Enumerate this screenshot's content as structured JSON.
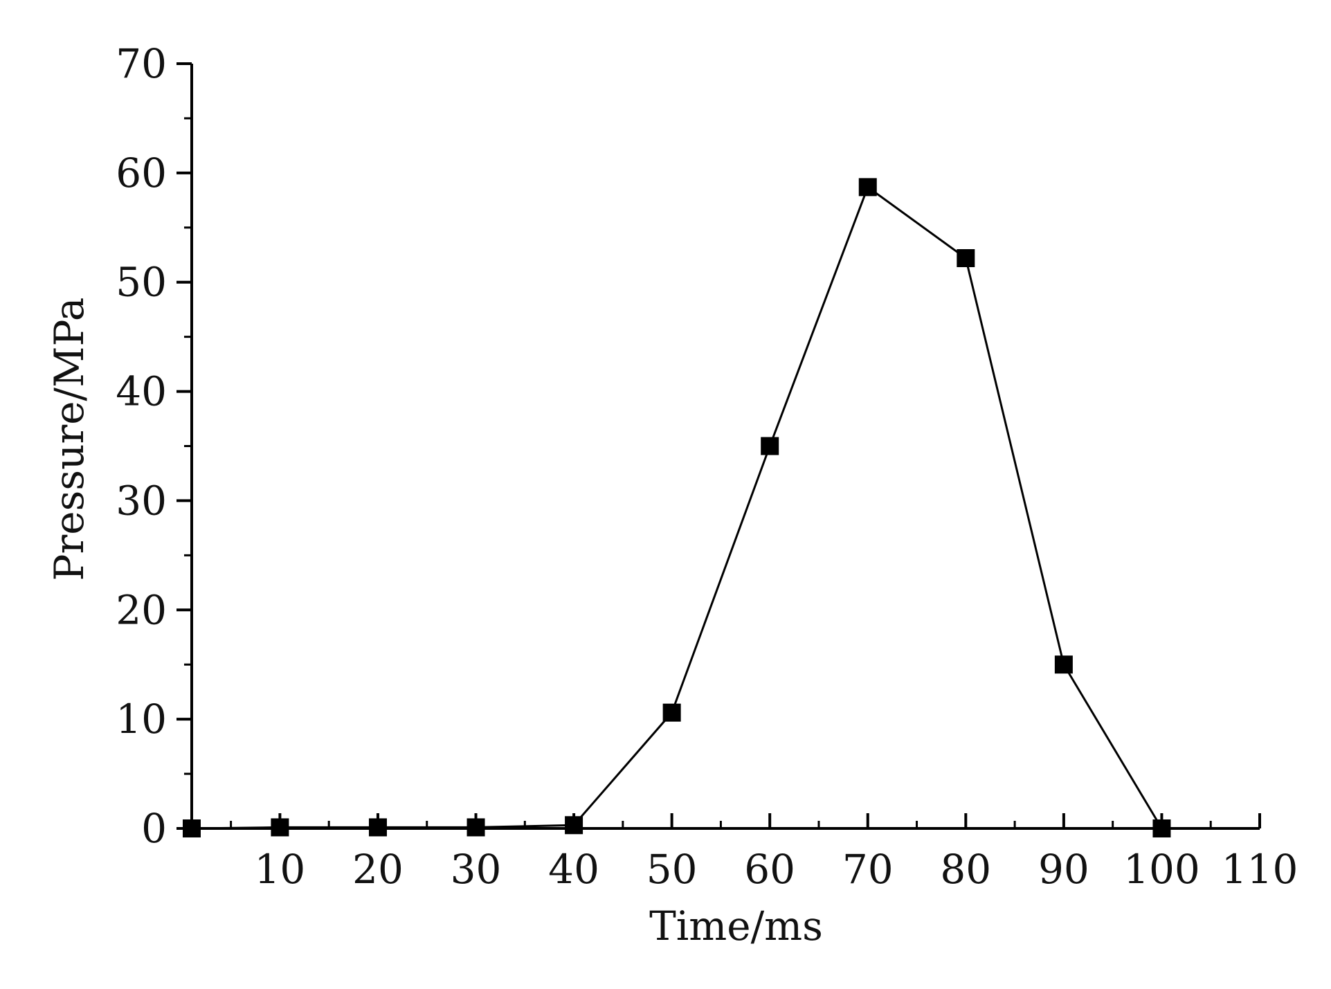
{
  "chart_data": {
    "type": "line",
    "title": "",
    "xlabel": "Time/ms",
    "ylabel": "Pressure/MPa",
    "xlim": [
      1,
      110
    ],
    "ylim": [
      0,
      70
    ],
    "x_ticks": [
      10,
      20,
      30,
      40,
      50,
      60,
      70,
      80,
      90,
      100,
      110
    ],
    "y_ticks": [
      0,
      10,
      20,
      30,
      40,
      50,
      60,
      70
    ],
    "grid": false,
    "marker": "square",
    "colors": {
      "line": "#000000",
      "marker": "#000000",
      "axis": "#000000"
    },
    "series": [
      {
        "x": [
          1,
          10,
          20,
          30,
          40,
          50,
          60,
          70,
          80,
          90,
          100
        ],
        "y": [
          0,
          0.1,
          0.1,
          0.1,
          0.3,
          10.6,
          35.0,
          58.7,
          52.2,
          15.0,
          0
        ]
      }
    ]
  }
}
